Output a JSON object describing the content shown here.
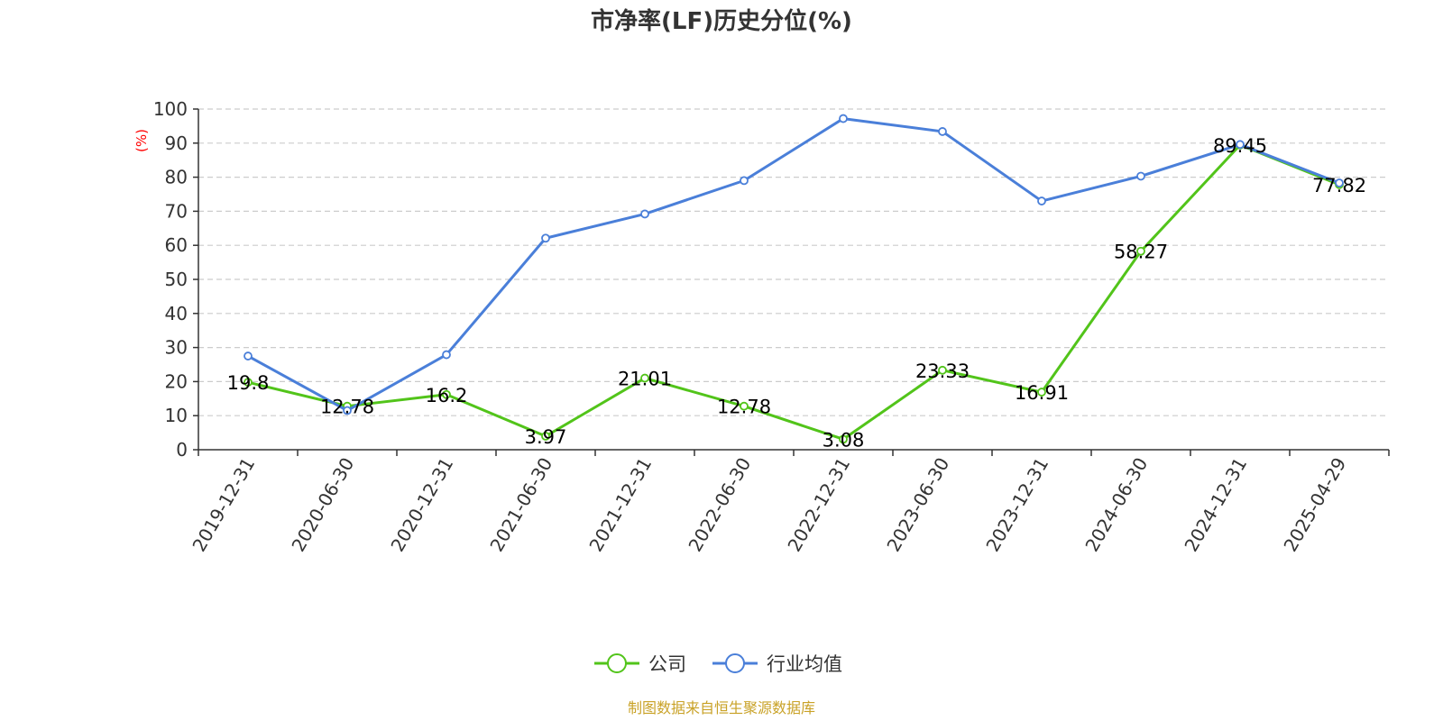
{
  "chart_data": {
    "type": "line",
    "title": "市净率(LF)历史分位(%)",
    "ylabel": "(%)",
    "ylim": [
      0,
      100
    ],
    "yticks": [
      0,
      10,
      20,
      30,
      40,
      50,
      60,
      70,
      80,
      90,
      100
    ],
    "categories": [
      "2019-12-31",
      "2020-06-30",
      "2020-12-31",
      "2021-06-30",
      "2021-12-31",
      "2022-06-30",
      "2022-12-31",
      "2023-06-30",
      "2023-12-31",
      "2024-06-30",
      "2024-12-31",
      "2025-04-29"
    ],
    "grid": true,
    "legend_position": "bottom",
    "series": [
      {
        "name": "公司",
        "color": "#52c41a",
        "values": [
          19.8,
          12.78,
          16.2,
          3.97,
          21.01,
          12.78,
          3.08,
          23.33,
          16.91,
          58.27,
          89.45,
          77.82
        ],
        "labels": [
          "19.8",
          "12.78",
          "16.2",
          "3.97",
          "21.01",
          "12.78",
          "3.08",
          "23.33",
          "16.91",
          "58.27",
          "89.45",
          "77.82"
        ]
      },
      {
        "name": "行业均值",
        "color": "#4a7fd9",
        "values": [
          27.5,
          11.5,
          27.9,
          62.1,
          69.2,
          79.0,
          97.2,
          93.4,
          73.0,
          80.3,
          89.6,
          78.3
        ]
      }
    ],
    "source": "制图数据来自恒生聚源数据库"
  }
}
